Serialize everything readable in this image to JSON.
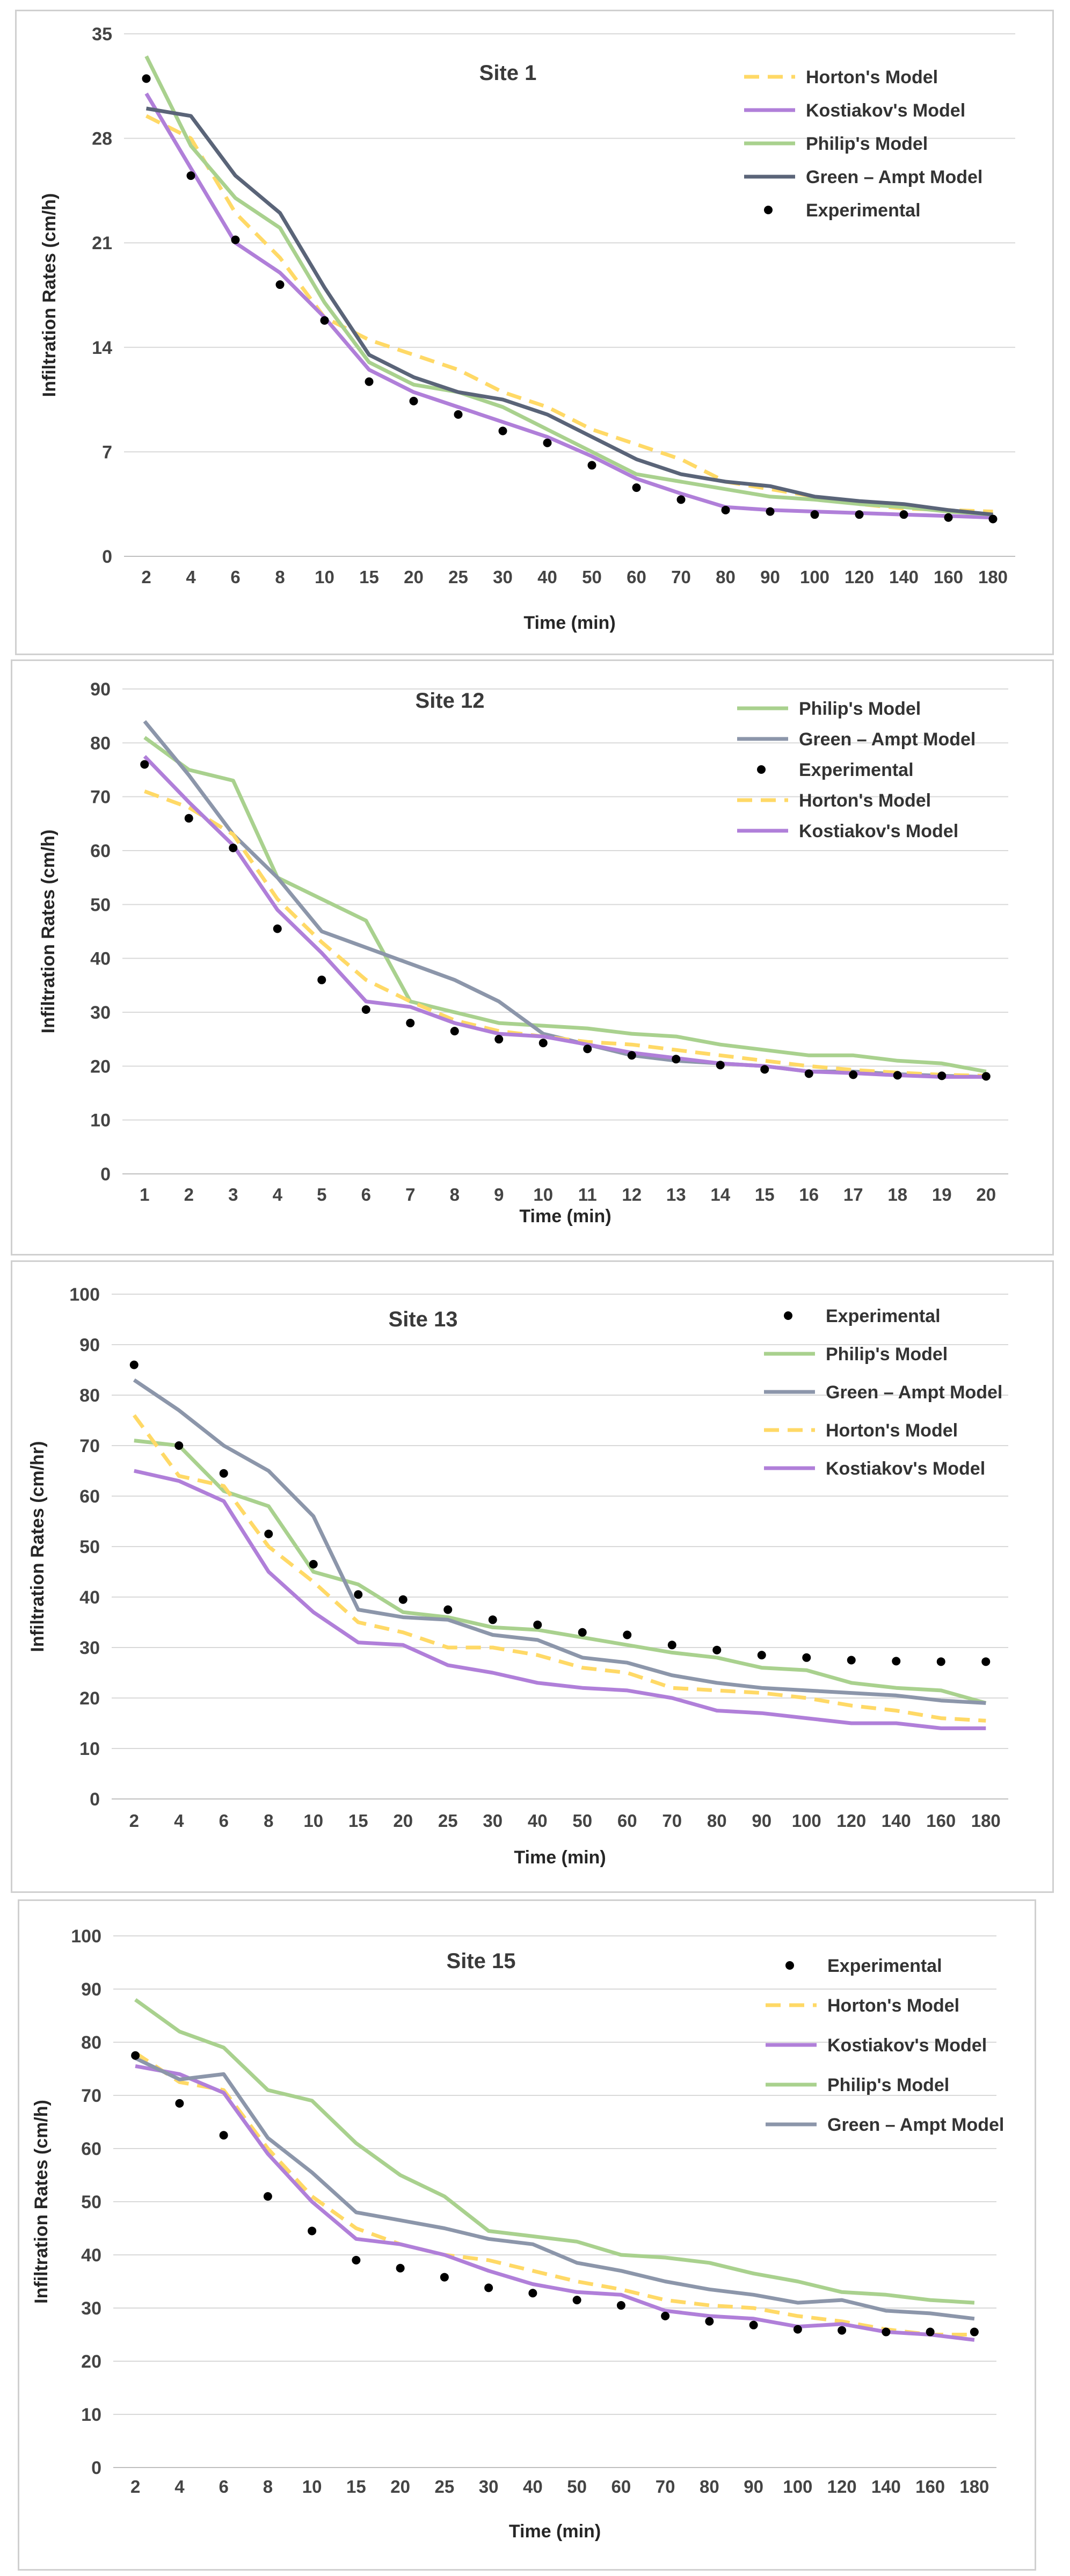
{
  "chart_data": [
    {
      "type": "line",
      "title": "Site 1",
      "xlabel": "Time (min)",
      "ylabel": "Infiltration Rates (cm/h)",
      "ylim": [
        0,
        35
      ],
      "yticks": [
        "0",
        "7",
        "14",
        "21",
        "28",
        "35"
      ],
      "categories": [
        "2",
        "4",
        "6",
        "8",
        "10",
        "15",
        "20",
        "25",
        "30",
        "40",
        "50",
        "60",
        "70",
        "80",
        "90",
        "100",
        "120",
        "140",
        "160",
        "180"
      ],
      "legend_position": "top-right",
      "series": [
        {
          "name": "Horton's Model",
          "style": "dashed",
          "color": "#ffd966",
          "values": [
            29.5,
            28,
            23,
            20,
            16,
            14.5,
            13.5,
            12.5,
            11,
            10,
            8.5,
            7.5,
            6.5,
            5,
            4.5,
            4,
            3.5,
            3.2,
            3.1,
            3
          ]
        },
        {
          "name": "Kostiakov's Model",
          "style": "solid",
          "color": "#b07fd9",
          "values": [
            31,
            26,
            21,
            19,
            16,
            12.5,
            11,
            10,
            9,
            8,
            6.7,
            5.2,
            4.2,
            3.3,
            3.1,
            3,
            2.9,
            2.8,
            2.7,
            2.6
          ]
        },
        {
          "name": "Philip's Model",
          "style": "solid",
          "color": "#a9d18e",
          "values": [
            33.5,
            27.5,
            24,
            22,
            17,
            13,
            11.5,
            11,
            10,
            8.5,
            7,
            5.5,
            5,
            4.5,
            4,
            3.8,
            3.5,
            3.3,
            3,
            2.8
          ]
        },
        {
          "name": "Green – Ampt Model",
          "style": "solid",
          "color": "#5a6478",
          "values": [
            30,
            29.5,
            25.5,
            23,
            18,
            13.5,
            12,
            11,
            10.5,
            9.5,
            8,
            6.5,
            5.5,
            5,
            4.7,
            4,
            3.7,
            3.5,
            3.1,
            2.8
          ]
        },
        {
          "name": "Experimental",
          "style": "marker",
          "color": "#000000",
          "values": [
            32,
            25.5,
            21.2,
            18.2,
            15.8,
            11.7,
            10.4,
            9.5,
            8.4,
            7.6,
            6.1,
            4.6,
            3.8,
            3.1,
            3,
            2.8,
            2.8,
            2.8,
            2.6,
            2.5
          ]
        }
      ]
    },
    {
      "type": "line",
      "title": "Site 12",
      "xlabel": "Time (min)",
      "ylabel": "Infiltration Rates (cm/h)",
      "ylim": [
        0,
        90
      ],
      "yticks": [
        "0",
        "10",
        "20",
        "30",
        "40",
        "50",
        "60",
        "70",
        "80",
        "90"
      ],
      "categories": [
        "1",
        "2",
        "3",
        "4",
        "5",
        "6",
        "7",
        "8",
        "9",
        "10",
        "11",
        "12",
        "13",
        "14",
        "15",
        "16",
        "17",
        "18",
        "19",
        "20"
      ],
      "legend_position": "top-right",
      "series": [
        {
          "name": "Philip's Model",
          "style": "solid",
          "color": "#a9d18e",
          "values": [
            81,
            75,
            73,
            55,
            51,
            47,
            32,
            30,
            28,
            27.5,
            27,
            26,
            25.5,
            24,
            23,
            22,
            22,
            21,
            20.5,
            19
          ]
        },
        {
          "name": "Green – Ampt Model",
          "style": "solid",
          "color": "#8c96aa",
          "values": [
            84,
            74,
            63,
            55,
            45,
            42,
            39,
            36,
            32,
            26,
            24,
            22,
            21,
            20.5,
            20,
            19,
            19,
            18.5,
            18.2,
            18
          ]
        },
        {
          "name": "Experimental",
          "style": "marker",
          "color": "#000000",
          "values": [
            76,
            66,
            60.5,
            45.5,
            36,
            30.5,
            28,
            26.5,
            25,
            24.3,
            23.2,
            22,
            21.3,
            20.2,
            19.4,
            18.6,
            18.4,
            18.3,
            18.2,
            18.1
          ]
        },
        {
          "name": "Horton's Model",
          "style": "dashed",
          "color": "#ffd966",
          "values": [
            71,
            68,
            63,
            51,
            43,
            36,
            32,
            28.5,
            26.5,
            25.5,
            24.5,
            24,
            23,
            22,
            21,
            20,
            19.3,
            18.8,
            18.4,
            18.2
          ]
        },
        {
          "name": "Kostiakov's Model",
          "style": "solid",
          "color": "#b07fd9",
          "values": [
            77.5,
            69,
            61,
            49,
            41,
            32,
            31,
            28,
            26,
            25.5,
            24,
            22.5,
            21.5,
            20.5,
            20,
            19,
            18.7,
            18.3,
            18,
            18
          ]
        }
      ]
    },
    {
      "type": "line",
      "title": "Site 13",
      "xlabel": "Time (min)",
      "ylabel": "Infiltration Rates (cm/hr)",
      "ylim": [
        0,
        100
      ],
      "yticks": [
        "0",
        "10",
        "20",
        "30",
        "40",
        "50",
        "60",
        "70",
        "80",
        "90",
        "100"
      ],
      "categories": [
        "2",
        "4",
        "6",
        "8",
        "10",
        "15",
        "20",
        "25",
        "30",
        "40",
        "50",
        "60",
        "70",
        "80",
        "90",
        "100",
        "120",
        "140",
        "160",
        "180"
      ],
      "legend_position": "top-right",
      "series": [
        {
          "name": "Experimental",
          "style": "marker",
          "color": "#000000",
          "values": [
            86,
            70,
            64.5,
            52.5,
            46.5,
            40.5,
            39.5,
            37.5,
            35.5,
            34.5,
            33,
            32.5,
            30.5,
            29.5,
            28.5,
            28,
            27.5,
            27.3,
            27.2,
            27.2
          ]
        },
        {
          "name": "Philip's Model",
          "style": "solid",
          "color": "#a9d18e",
          "values": [
            71,
            70,
            61,
            58,
            45,
            42.5,
            37,
            36,
            34,
            33.5,
            32,
            30.5,
            29,
            28,
            26,
            25.5,
            23,
            22,
            21.5,
            19
          ]
        },
        {
          "name": "Green – Ampt Model",
          "style": "solid",
          "color": "#8c96aa",
          "values": [
            83,
            77,
            70,
            65,
            56,
            37.5,
            36,
            35.5,
            32.5,
            31.5,
            28,
            27,
            24.5,
            23,
            22,
            21.5,
            21,
            20.5,
            19.5,
            19
          ]
        },
        {
          "name": "Horton's Model",
          "style": "dashed",
          "color": "#ffd966",
          "values": [
            76,
            64,
            62,
            50,
            43,
            35,
            33,
            30,
            30,
            28.5,
            26,
            25,
            22,
            21.5,
            21,
            20,
            18.5,
            17.5,
            16,
            15.5
          ]
        },
        {
          "name": "Kostiakov's Model",
          "style": "solid",
          "color": "#b07fd9",
          "values": [
            65,
            63,
            59,
            45,
            37,
            31,
            30.5,
            26.5,
            25,
            23,
            22,
            21.5,
            20,
            17.5,
            17,
            16,
            15,
            15,
            14,
            14
          ]
        }
      ]
    },
    {
      "type": "line",
      "title": "Site 15",
      "xlabel": "Time (min)",
      "ylabel": "Infiltration Rates (cm/h)",
      "ylim": [
        0,
        100
      ],
      "yticks": [
        "0",
        "10",
        "20",
        "30",
        "40",
        "50",
        "60",
        "70",
        "80",
        "90",
        "100"
      ],
      "categories": [
        "2",
        "4",
        "6",
        "8",
        "10",
        "15",
        "20",
        "25",
        "30",
        "40",
        "50",
        "60",
        "70",
        "80",
        "90",
        "100",
        "120",
        "140",
        "160",
        "180"
      ],
      "legend_position": "top-right",
      "series": [
        {
          "name": "Experimental",
          "style": "marker",
          "color": "#000000",
          "values": [
            77.5,
            68.5,
            62.5,
            51,
            44.5,
            39,
            37.5,
            35.8,
            33.8,
            32.8,
            31.5,
            30.5,
            28.5,
            27.5,
            26.8,
            26,
            25.8,
            25.5,
            25.5,
            25.5
          ]
        },
        {
          "name": "Horton's Model",
          "style": "dashed",
          "color": "#ffd966",
          "values": [
            78,
            72.5,
            71,
            60,
            51,
            45,
            42,
            40,
            39,
            37,
            35,
            33.5,
            31.5,
            30.5,
            30,
            28.5,
            27.5,
            26,
            25,
            25
          ]
        },
        {
          "name": "Kostiakov's Model",
          "style": "solid",
          "color": "#b07fd9",
          "values": [
            75.5,
            74,
            70.5,
            59,
            50,
            43,
            42,
            40,
            37,
            34.5,
            33,
            32.5,
            29.5,
            28.5,
            28,
            26.5,
            27,
            25.5,
            25,
            24
          ]
        },
        {
          "name": "Philip's Model",
          "style": "solid",
          "color": "#a9d18e",
          "values": [
            88,
            82,
            79,
            71,
            69,
            61,
            55,
            51,
            44.5,
            43.5,
            42.5,
            40,
            39.5,
            38.5,
            36.5,
            35,
            33,
            32.5,
            31.5,
            31
          ]
        },
        {
          "name": "Green – Ampt Model",
          "style": "solid",
          "color": "#8c96aa",
          "values": [
            77,
            73,
            74,
            62,
            55.5,
            48,
            46.5,
            45,
            43,
            42,
            38.5,
            37,
            35,
            33.5,
            32.5,
            31,
            31.5,
            29.5,
            29,
            28
          ]
        }
      ]
    }
  ]
}
